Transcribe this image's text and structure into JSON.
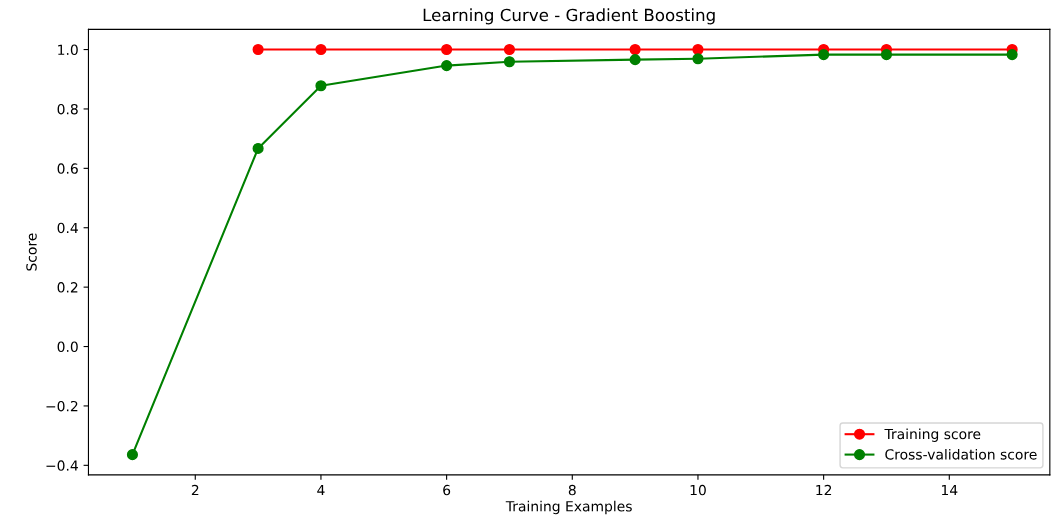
{
  "chart_data": {
    "type": "line",
    "title": "Learning Curve - Gradient Boosting",
    "xlabel": "Training Examples",
    "ylabel": "Score",
    "x": [
      1,
      3,
      4,
      6,
      7,
      9,
      10,
      12,
      13,
      15
    ],
    "series": [
      {
        "name": "Training score",
        "color": "#ff0000",
        "values": [
          null,
          1.0,
          1.0,
          1.0,
          1.0,
          1.0,
          1.0,
          1.0,
          1.0,
          1.0
        ]
      },
      {
        "name": "Cross-validation score",
        "color": "#008000",
        "values": [
          -0.364,
          0.667,
          0.878,
          0.946,
          0.959,
          0.966,
          0.969,
          0.983,
          0.983,
          0.983
        ]
      }
    ],
    "xlim": [
      0.3,
      15.6
    ],
    "xticks": [
      2,
      4,
      6,
      8,
      10,
      12,
      14
    ],
    "ylim": [
      -0.432,
      1.068
    ],
    "yticks": [
      {
        "value": -0.4,
        "label": "−0.4"
      },
      {
        "value": -0.2,
        "label": "−0.2"
      },
      {
        "value": 0.0,
        "label": "0.0"
      },
      {
        "value": 0.2,
        "label": "0.2"
      },
      {
        "value": 0.4,
        "label": "0.4"
      },
      {
        "value": 0.6,
        "label": "0.6"
      },
      {
        "value": 0.8,
        "label": "0.8"
      },
      {
        "value": 1.0,
        "label": "1.0"
      }
    ],
    "grid": false,
    "legend": "lower right",
    "marker": "circle",
    "line_style": "solid"
  }
}
